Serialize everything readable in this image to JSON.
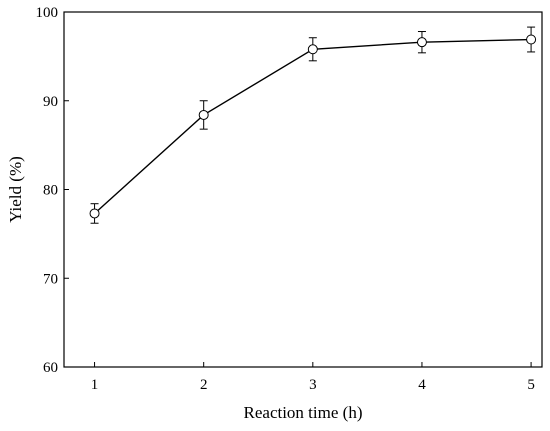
{
  "chart_data": {
    "type": "line",
    "title": "",
    "xlabel": "Reaction time (h)",
    "ylabel": "Yield (%)",
    "xlim": [
      0.72,
      5.1
    ],
    "ylim": [
      60,
      100
    ],
    "xticks": [
      1,
      2,
      3,
      4,
      5
    ],
    "yticks": [
      60,
      70,
      80,
      90,
      100
    ],
    "grid": false,
    "marker": "open-circle",
    "series": [
      {
        "x": [
          1,
          2,
          3,
          4,
          5
        ],
        "values": [
          77.3,
          88.4,
          95.8,
          96.6,
          96.9
        ],
        "error": [
          1.1,
          1.6,
          1.3,
          1.2,
          1.4
        ]
      }
    ]
  }
}
